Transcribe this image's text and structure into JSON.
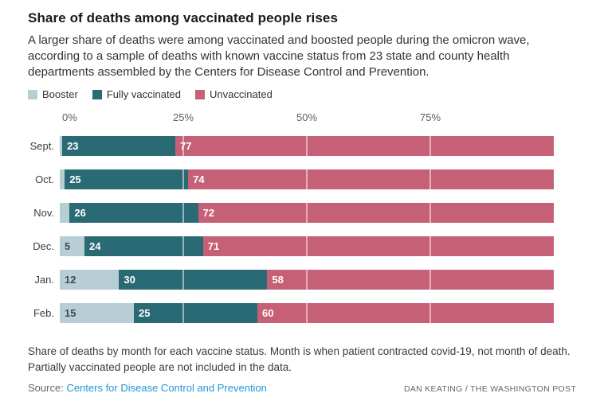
{
  "page": {
    "title": "Share of deaths among vaccinated people rises",
    "subtitle": "A larger share of deaths were among vaccinated and boosted people during the omicron wave, according to a sample of deaths with known vaccine status from 23 state and county health departments assembled by the Centers for Disease Control and Prevention.",
    "notes_lines": [
      "Share of deaths by month for each vaccine status. Month is when patient contracted covid-19, not month of death.",
      "Partially vaccinated people are not included in the data."
    ],
    "source_label": "Source:",
    "source_link": "Centers for Disease Control and Prevention",
    "credit": "DAN KEATING / THE WASHINGTON POST"
  },
  "colors": {
    "booster": "#b7ced4",
    "fully_vaccinated": "#2a6a75",
    "unvaccinated": "#c66077",
    "booster_label_text": "#3f4e52",
    "bar_label_text": "#ffffff",
    "link": "#2196d9"
  },
  "chart_data": {
    "type": "bar",
    "orientation": "horizontal",
    "stacked": true,
    "title": "Share of deaths among vaccinated people rises",
    "categories": [
      "Sept.",
      "Oct.",
      "Nov.",
      "Dec.",
      "Jan.",
      "Feb."
    ],
    "series": [
      {
        "name": "Booster",
        "color": "#b7ced4",
        "label_color": "#3f4e52",
        "values": [
          0.5,
          1,
          2,
          5,
          12,
          15
        ],
        "labels": [
          "",
          "",
          "",
          "5",
          "12",
          "15"
        ]
      },
      {
        "name": "Fully vaccinated",
        "color": "#2a6a75",
        "label_color": "#ffffff",
        "values": [
          23,
          25,
          26,
          24,
          30,
          25
        ],
        "labels": [
          "23",
          "25",
          "26",
          "24",
          "30",
          "25"
        ]
      },
      {
        "name": "Unvaccinated",
        "color": "#c66077",
        "label_color": "#ffffff",
        "values": [
          77,
          74,
          72,
          71,
          58,
          60
        ],
        "labels": [
          "77",
          "74",
          "72",
          "71",
          "58",
          "60"
        ]
      }
    ],
    "x_ticks": [
      {
        "value": 0,
        "label": "0%"
      },
      {
        "value": 25,
        "label": "25%"
      },
      {
        "value": 50,
        "label": "50%"
      },
      {
        "value": 75,
        "label": "75%"
      }
    ],
    "gridlines": [
      25,
      50,
      75
    ],
    "xlim": [
      0,
      100
    ],
    "legend_position": "top",
    "value_label_position": "inside-left"
  }
}
